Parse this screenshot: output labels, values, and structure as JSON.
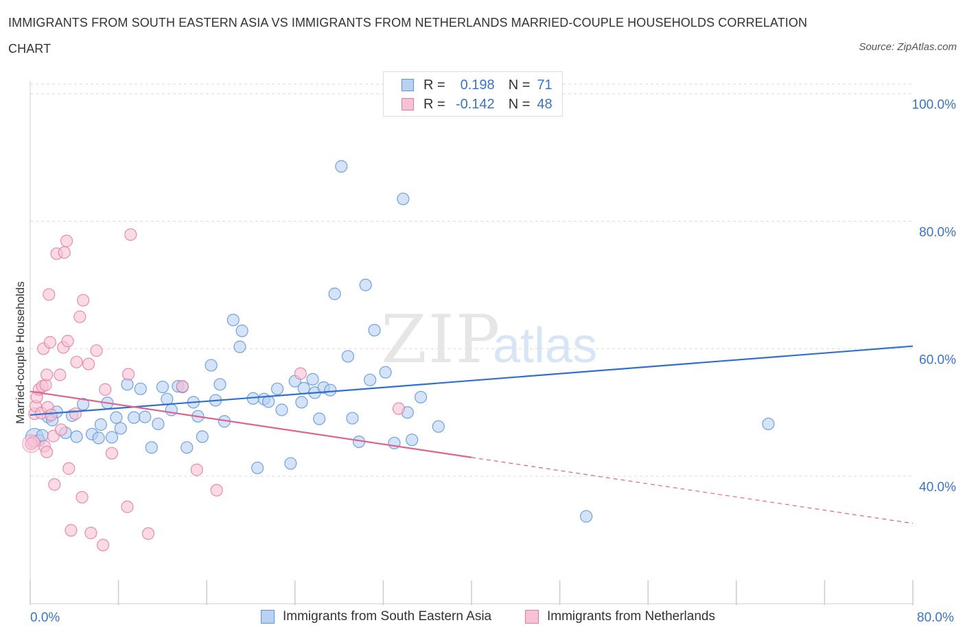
{
  "title": "IMMIGRANTS FROM SOUTH EASTERN ASIA VS IMMIGRANTS FROM NETHERLANDS MARRIED-COUPLE HOUSEHOLDS CORRELATION CHART",
  "source": "Source: ZipAtlas.com",
  "watermark": {
    "zip": "ZIP",
    "atlas": "atlas"
  },
  "colors": {
    "blue": "#5b93d9",
    "blue_fill": "#b9d1f3",
    "pink": "#e57aa0",
    "pink_fill": "#f7c3d4",
    "axis_text": "#3a74c8"
  },
  "legend_top": {
    "rows": [
      {
        "r_label": "R =",
        "r_value": "0.198",
        "n_label": "N =",
        "n_value": "71"
      },
      {
        "r_label": "R =",
        "r_value": "-0.142",
        "n_label": "N =",
        "n_value": "48"
      }
    ]
  },
  "chart_data": {
    "type": "scatter",
    "title": "IMMIGRANTS FROM SOUTH EASTERN ASIA VS IMMIGRANTS FROM NETHERLANDS MARRIED-COUPLE HOUSEHOLDS CORRELATION CHART",
    "xlabel": "",
    "ylabel": "Married-couple Households",
    "xlim": [
      0,
      80
    ],
    "ylim": [
      20,
      102
    ],
    "x_tick_labels": [
      "0.0%",
      "80.0%"
    ],
    "y_ticks": [
      40,
      60,
      80,
      100
    ],
    "y_tick_labels": [
      "40.0%",
      "60.0%",
      "80.0%",
      "100.0%"
    ],
    "grid": "horizontal-dashed",
    "legend_position": "bottom",
    "series": [
      {
        "name": "Immigrants from South Eastern Asia",
        "color": "#5b93d9",
        "R": 0.198,
        "N": 71,
        "trend": {
          "x": [
            0,
            80
          ],
          "y": [
            49.6,
            60.4
          ]
        },
        "points": [
          [
            0.4,
            46.1
          ],
          [
            0.8,
            45.6
          ],
          [
            1.1,
            46.4
          ],
          [
            1.6,
            49.3
          ],
          [
            2.0,
            48.8
          ],
          [
            2.4,
            50.1
          ],
          [
            3.2,
            46.8
          ],
          [
            3.8,
            49.5
          ],
          [
            4.2,
            46.2
          ],
          [
            4.8,
            51.3
          ],
          [
            5.6,
            46.6
          ],
          [
            6.2,
            46.0
          ],
          [
            6.4,
            48.1
          ],
          [
            7.0,
            51.5
          ],
          [
            7.4,
            46.1
          ],
          [
            7.8,
            49.2
          ],
          [
            8.2,
            47.5
          ],
          [
            8.8,
            54.4
          ],
          [
            9.4,
            49.2
          ],
          [
            10.0,
            53.7
          ],
          [
            10.4,
            49.3
          ],
          [
            11.0,
            44.5
          ],
          [
            11.6,
            48.2
          ],
          [
            12.0,
            54.0
          ],
          [
            12.4,
            52.1
          ],
          [
            12.8,
            50.4
          ],
          [
            13.4,
            54.1
          ],
          [
            13.8,
            54.0
          ],
          [
            14.2,
            44.5
          ],
          [
            14.8,
            51.6
          ],
          [
            15.2,
            49.4
          ],
          [
            15.6,
            46.2
          ],
          [
            16.4,
            57.4
          ],
          [
            16.8,
            51.9
          ],
          [
            17.2,
            54.4
          ],
          [
            17.6,
            48.6
          ],
          [
            18.4,
            64.5
          ],
          [
            19.0,
            60.3
          ],
          [
            19.2,
            62.8
          ],
          [
            20.2,
            52.2
          ],
          [
            20.6,
            41.3
          ],
          [
            21.2,
            52.1
          ],
          [
            21.6,
            51.7
          ],
          [
            22.4,
            53.7
          ],
          [
            22.8,
            50.4
          ],
          [
            23.6,
            42.0
          ],
          [
            24.0,
            54.9
          ],
          [
            24.6,
            51.6
          ],
          [
            24.8,
            53.8
          ],
          [
            25.6,
            55.2
          ],
          [
            25.8,
            53.1
          ],
          [
            26.2,
            49.0
          ],
          [
            26.6,
            53.9
          ],
          [
            27.2,
            53.5
          ],
          [
            27.6,
            68.6
          ],
          [
            28.2,
            88.6
          ],
          [
            28.8,
            58.8
          ],
          [
            29.2,
            49.1
          ],
          [
            29.8,
            45.4
          ],
          [
            30.4,
            70.0
          ],
          [
            30.8,
            55.1
          ],
          [
            31.2,
            62.9
          ],
          [
            32.2,
            56.3
          ],
          [
            33.0,
            45.2
          ],
          [
            33.8,
            83.5
          ],
          [
            34.2,
            50.0
          ],
          [
            34.6,
            45.7
          ],
          [
            35.4,
            52.4
          ],
          [
            37.0,
            47.8
          ],
          [
            50.4,
            33.7
          ],
          [
            66.9,
            48.2
          ]
        ]
      },
      {
        "name": "Immigrants from Netherlands",
        "color": "#e57aa0",
        "R": -0.142,
        "N": 48,
        "trend": {
          "x": [
            0,
            80
          ],
          "y": [
            53.3,
            32.6
          ]
        },
        "trend_solid_until_x": 40,
        "points": [
          [
            0.3,
            45.4
          ],
          [
            0.4,
            49.8
          ],
          [
            0.5,
            51.0
          ],
          [
            0.6,
            52.4
          ],
          [
            0.8,
            53.6
          ],
          [
            1.0,
            49.9
          ],
          [
            1.1,
            54.1
          ],
          [
            1.2,
            60.0
          ],
          [
            1.3,
            44.7
          ],
          [
            1.4,
            54.3
          ],
          [
            1.5,
            55.9
          ],
          [
            1.5,
            43.8
          ],
          [
            1.6,
            50.8
          ],
          [
            1.7,
            68.5
          ],
          [
            1.8,
            61.0
          ],
          [
            1.9,
            49.6
          ],
          [
            2.1,
            46.3
          ],
          [
            2.2,
            38.7
          ],
          [
            2.4,
            74.9
          ],
          [
            2.7,
            55.9
          ],
          [
            2.8,
            47.3
          ],
          [
            3.0,
            60.2
          ],
          [
            3.1,
            75.1
          ],
          [
            3.3,
            76.9
          ],
          [
            3.4,
            61.2
          ],
          [
            3.5,
            41.2
          ],
          [
            3.7,
            31.5
          ],
          [
            4.1,
            49.8
          ],
          [
            4.2,
            57.9
          ],
          [
            4.5,
            65.0
          ],
          [
            4.7,
            36.7
          ],
          [
            4.8,
            67.6
          ],
          [
            5.3,
            57.6
          ],
          [
            5.5,
            31.1
          ],
          [
            6.0,
            59.7
          ],
          [
            6.6,
            29.2
          ],
          [
            6.8,
            53.6
          ],
          [
            7.4,
            43.6
          ],
          [
            8.8,
            35.2
          ],
          [
            8.9,
            56.0
          ],
          [
            9.1,
            77.9
          ],
          [
            10.7,
            31.0
          ],
          [
            13.8,
            54.1
          ],
          [
            15.1,
            41.0
          ],
          [
            16.9,
            37.8
          ],
          [
            24.5,
            56.1
          ],
          [
            33.4,
            50.6
          ],
          [
            0.1,
            45.1
          ]
        ]
      }
    ]
  },
  "bottom_legend": [
    "Immigrants from South Eastern Asia",
    "Immigrants from Netherlands"
  ]
}
